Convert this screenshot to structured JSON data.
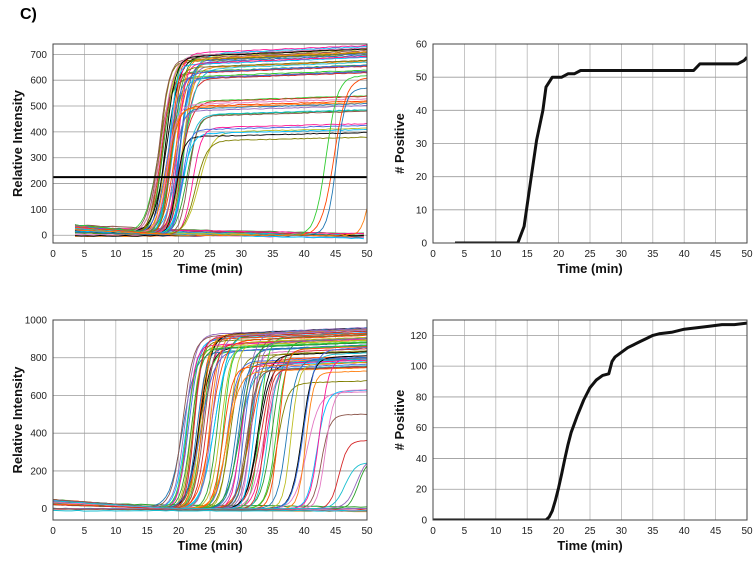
{
  "figure": {
    "panel_label": "C)"
  },
  "chart_data": [
    {
      "type": "line",
      "xlabel": "Time (min)",
      "ylabel": "Relative Intensity",
      "xlim": [
        0,
        50
      ],
      "ylim": [
        -30,
        740
      ],
      "xticks": [
        0,
        5,
        10,
        15,
        20,
        25,
        30,
        35,
        40,
        45,
        50
      ],
      "yticks": [
        0,
        100,
        200,
        300,
        400,
        500,
        600,
        700
      ],
      "grid": true,
      "threshold": 225,
      "series_summary": "many amplification curves, onsets 14-20 min, plateaus 350-730, late onsets near 41 and 47 min",
      "bundles": [
        {
          "count": 34,
          "t0": [
            14.2,
            18.5
          ],
          "plateau": [
            600,
            700
          ]
        },
        {
          "count": 10,
          "t0": [
            15.5,
            19.5
          ],
          "plateau": [
            420,
            520
          ]
        },
        {
          "count": 6,
          "t0": [
            17,
            21
          ],
          "plateau": [
            330,
            420
          ]
        },
        {
          "count": 3,
          "t0": [
            41,
            43
          ],
          "plateau": [
            560,
            620
          ]
        },
        {
          "count": 1,
          "t0": [
            47.5,
            48
          ],
          "plateau": [
            320,
            340
          ]
        }
      ],
      "baseline_count": 12,
      "colors": [
        "#1f77b4",
        "#ff7f0e",
        "#2ca02c",
        "#d62728",
        "#9467bd",
        "#8c564b",
        "#e377c2",
        "#17becf",
        "#bcbd22",
        "#000000",
        "#00bfff",
        "#ff1493",
        "#7f7f00",
        "#4169e1",
        "#32cd32",
        "#ff4500"
      ]
    },
    {
      "type": "line",
      "xlabel": "Time (min)",
      "ylabel": "# Positive",
      "xlim": [
        0,
        50
      ],
      "ylim": [
        0,
        60
      ],
      "xticks": [
        0,
        5,
        10,
        15,
        20,
        25,
        30,
        35,
        40,
        45,
        50
      ],
      "yticks": [
        0,
        10,
        20,
        30,
        40,
        50,
        60
      ],
      "grid": true,
      "series": [
        {
          "x": [
            3.5,
            13.5,
            14.5,
            15.5,
            16.5,
            17.5,
            18,
            19,
            20.5,
            21.5,
            22.5,
            23.5,
            41.5,
            42.5,
            48.5,
            49.5,
            50
          ],
          "y": [
            0,
            0,
            5,
            18,
            31,
            40,
            47,
            50,
            50,
            51,
            51,
            52,
            52,
            54,
            54,
            55,
            56
          ]
        }
      ]
    },
    {
      "type": "line",
      "xlabel": "Time (min)",
      "ylabel": "Relative Intensity",
      "xlim": [
        0,
        50
      ],
      "ylim": [
        -60,
        1000
      ],
      "xticks": [
        0,
        5,
        10,
        15,
        20,
        25,
        30,
        35,
        40,
        45,
        50
      ],
      "yticks": [
        0,
        200,
        400,
        600,
        800,
        1000
      ],
      "grid": true,
      "series_summary": "many amplification curves, onsets 18-48 min, plateaus 550-950",
      "bundles": [
        {
          "count": 30,
          "t0": [
            18,
            24
          ],
          "plateau": [
            820,
            950
          ]
        },
        {
          "count": 32,
          "t0": [
            24,
            33
          ],
          "plateau": [
            720,
            930
          ]
        },
        {
          "count": 12,
          "t0": [
            33,
            40
          ],
          "plateau": [
            600,
            850
          ]
        },
        {
          "count": 6,
          "t0": [
            40,
            48.5
          ],
          "plateau": [
            200,
            650
          ]
        }
      ],
      "baseline_count": 8,
      "colors": [
        "#1f77b4",
        "#ff7f0e",
        "#2ca02c",
        "#d62728",
        "#9467bd",
        "#8c564b",
        "#e377c2",
        "#17becf",
        "#bcbd22",
        "#000000",
        "#00bfff",
        "#ff1493",
        "#7f7f00",
        "#4169e1",
        "#32cd32",
        "#ff4500"
      ]
    },
    {
      "type": "line",
      "xlabel": "Time (min)",
      "ylabel": "# Positive",
      "xlim": [
        0,
        50
      ],
      "ylim": [
        0,
        130
      ],
      "xticks": [
        0,
        5,
        10,
        15,
        20,
        25,
        30,
        35,
        40,
        45,
        50
      ],
      "yticks": [
        0,
        20,
        40,
        60,
        80,
        100,
        120
      ],
      "grid": true,
      "series": [
        {
          "x": [
            0,
            18,
            18.5,
            19,
            19.5,
            20,
            20.5,
            21,
            21.5,
            22,
            23,
            24,
            25,
            26,
            27,
            28,
            28.5,
            29,
            30,
            31,
            32,
            33,
            34,
            35,
            36,
            38,
            40,
            42,
            44,
            46,
            48,
            50
          ],
          "y": [
            0,
            0,
            2,
            6,
            13,
            21,
            30,
            40,
            49,
            57,
            68,
            78,
            86,
            91,
            94,
            95,
            103,
            106,
            109,
            112,
            114,
            116,
            118,
            120,
            121,
            122,
            124,
            125,
            126,
            127,
            127,
            128
          ]
        }
      ]
    }
  ]
}
